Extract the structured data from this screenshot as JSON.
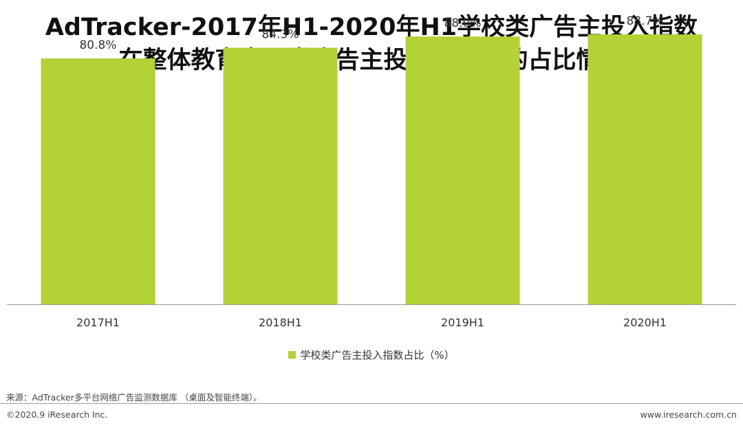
{
  "header": {
    "title_line1": "AdTracker-2017年H1-2020年H1学校类广告主投入指数",
    "title_line2": "在整体教育出国类广告主投入指数中的占比情况"
  },
  "chart_data": {
    "type": "bar",
    "categories": [
      "2017H1",
      "2018H1",
      "2019H1",
      "2020H1"
    ],
    "series": [
      {
        "name": "学校类广告主投入指数占比（%）",
        "values": [
          80.8,
          84.3,
          88.0,
          88.7
        ],
        "labels": [
          "80.8%",
          "84.3%",
          "88.0%",
          "88.7%"
        ],
        "color": "#b2d235"
      }
    ],
    "ylim": [
      0,
      100
    ],
    "grid": false,
    "legend_position": "bottom"
  },
  "legend": {
    "label": "学校类广告主投入指数占比（%）",
    "color": "#b2d235"
  },
  "footer": {
    "source": "来源：AdTracker多平台网络广告监测数据库 （桌面及智能终端）。",
    "copyright": "©2020.9 iResearch Inc.",
    "website": "www.iresearch.com.cn"
  }
}
